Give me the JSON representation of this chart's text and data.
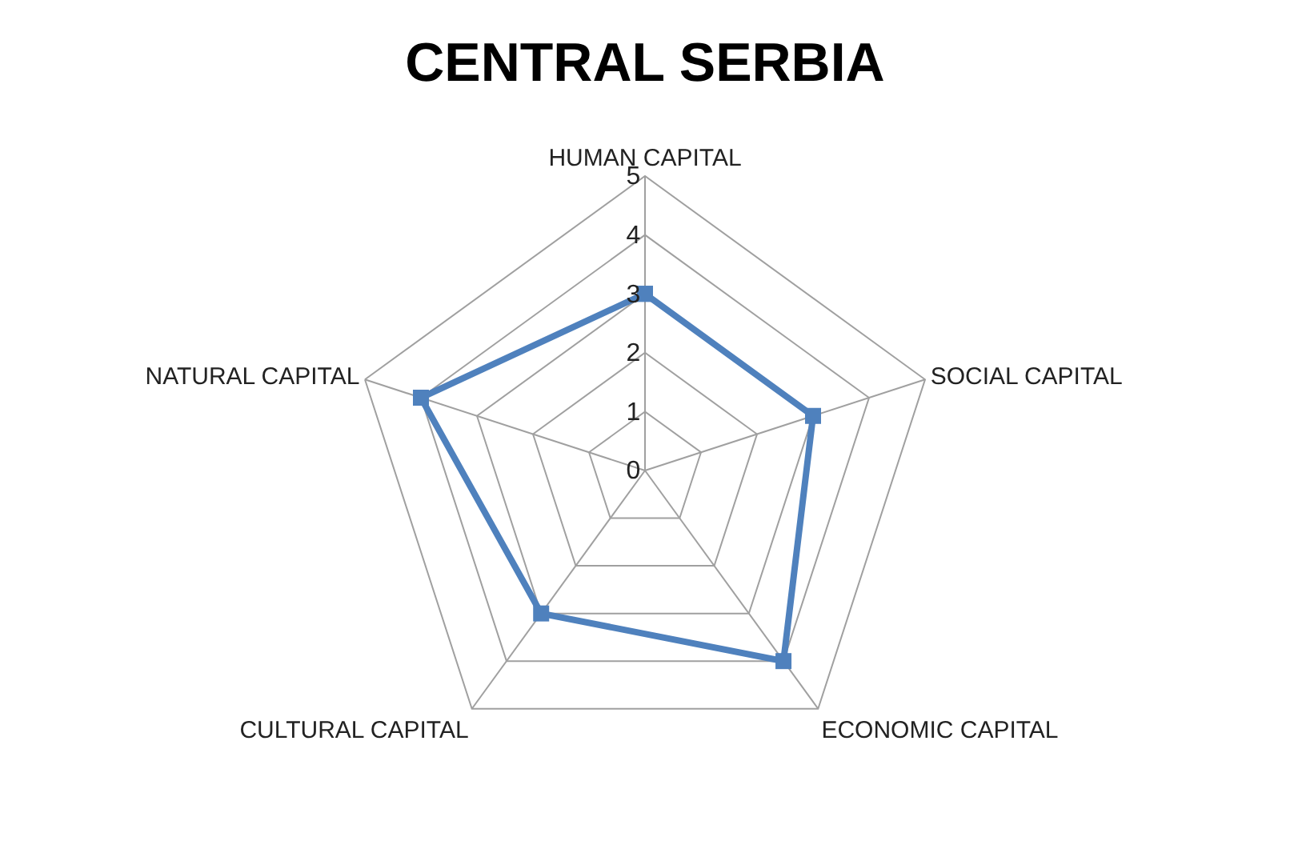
{
  "chart_data": {
    "type": "radar",
    "title": "CENTRAL SERBIA",
    "categories": [
      "HUMAN CAPITAL",
      "SOCIAL CAPITAL",
      "ECONOMIC CAPITAL",
      "CULTURAL CAPITAL",
      "NATURAL CAPITAL"
    ],
    "series": [
      {
        "color": "#4f81bd",
        "values": [
          3,
          3,
          4,
          3,
          4
        ]
      }
    ],
    "ylim": [
      0,
      5
    ],
    "yticks": [
      0,
      1,
      2,
      3,
      4,
      5
    ],
    "grid": true,
    "legend": false,
    "marker": "square",
    "line_style": "solid"
  }
}
